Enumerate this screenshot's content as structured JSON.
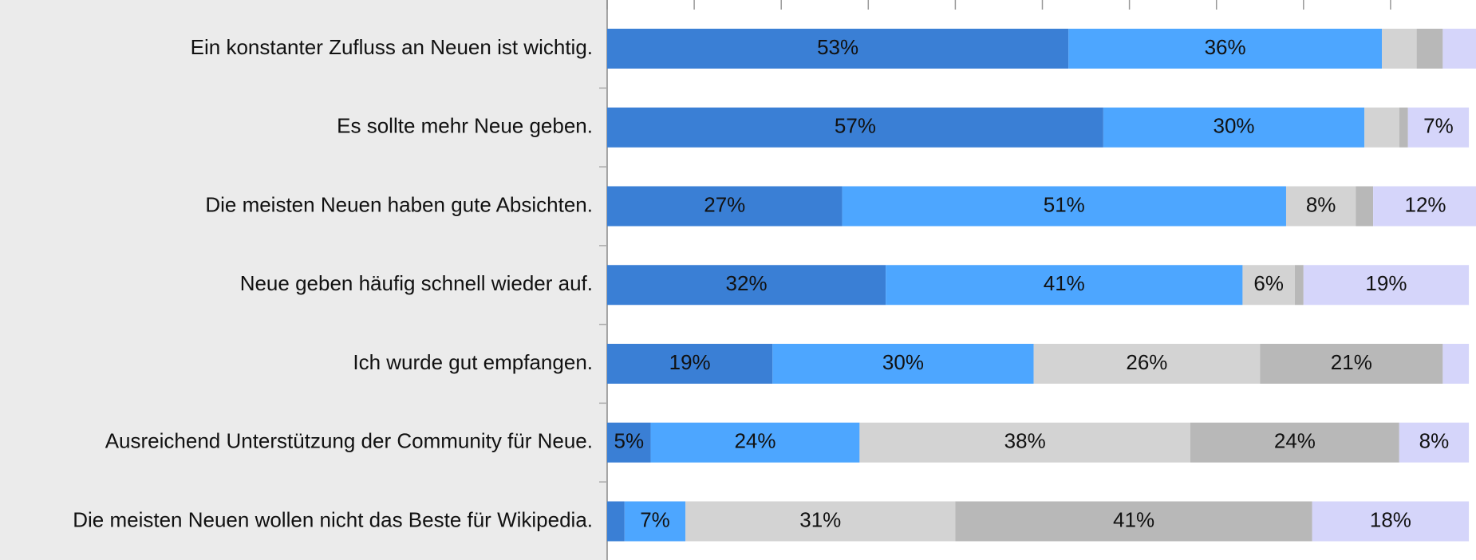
{
  "chart_data": {
    "type": "stacked-bar-horizontal",
    "categories": [
      "Ein konstanter Zufluss an Neuen ist wichtig.",
      "Es sollte mehr Neue geben.",
      "Die meisten Neuen haben gute Absichten.",
      "Neue geben häufig schnell wieder auf.",
      "Ich wurde gut empfangen.",
      "Ausreichend Unterstützung der Community für Neue.",
      "Die meisten Neuen wollen nicht das Beste für Wikipedia."
    ],
    "series": [
      {
        "color": "#3a7fd5",
        "values": [
          53,
          57,
          27,
          32,
          19,
          5,
          2
        ],
        "value_labels": [
          "53%",
          "57%",
          "27%",
          "32%",
          "19%",
          "5%",
          null
        ]
      },
      {
        "color": "#4da6ff",
        "values": [
          36,
          30,
          51,
          41,
          30,
          24,
          7
        ],
        "value_labels": [
          "36%",
          "30%",
          "51%",
          "41%",
          "30%",
          "24%",
          "7%"
        ]
      },
      {
        "color": "#d3d3d3",
        "values": [
          4,
          4,
          8,
          6,
          26,
          38,
          31
        ],
        "value_labels": [
          null,
          null,
          "8%",
          "6%",
          "26%",
          "38%",
          "31%"
        ]
      },
      {
        "color": "#b8b8b8",
        "values": [
          3,
          1,
          2,
          1,
          21,
          24,
          41
        ],
        "value_labels": [
          null,
          null,
          null,
          null,
          "21%",
          "24%",
          "41%"
        ]
      },
      {
        "color": "#d5d5fa",
        "values": [
          4,
          7,
          12,
          19,
          3,
          8,
          18
        ],
        "value_labels": [
          null,
          "7%",
          "12%",
          "19%",
          null,
          "8%",
          "18%"
        ]
      }
    ],
    "xlim": [
      0,
      100
    ],
    "xticks": [
      0,
      10,
      20,
      30,
      40,
      50,
      60,
      70,
      80,
      90,
      100
    ]
  }
}
